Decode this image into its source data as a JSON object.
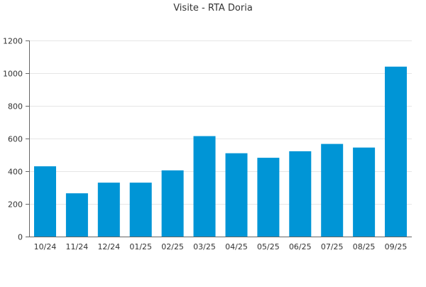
{
  "chart_data": {
    "type": "bar",
    "title": "Visite - RTA Doria",
    "xlabel": "",
    "ylabel": "",
    "categories": [
      "10/24",
      "11/24",
      "12/24",
      "01/25",
      "02/25",
      "03/25",
      "04/25",
      "05/25",
      "06/25",
      "07/25",
      "08/25",
      "09/25"
    ],
    "values": [
      430,
      265,
      330,
      330,
      405,
      615,
      510,
      482,
      522,
      567,
      545,
      1040
    ],
    "ylim": [
      0,
      1200
    ],
    "yticks": [
      0,
      200,
      400,
      600,
      800,
      1000,
      1200
    ],
    "grid": true,
    "legend": "none"
  },
  "colors": {
    "bar": "#0095d6",
    "grid": "#e6e6e6",
    "axis": "#666666",
    "text": "#333333"
  }
}
